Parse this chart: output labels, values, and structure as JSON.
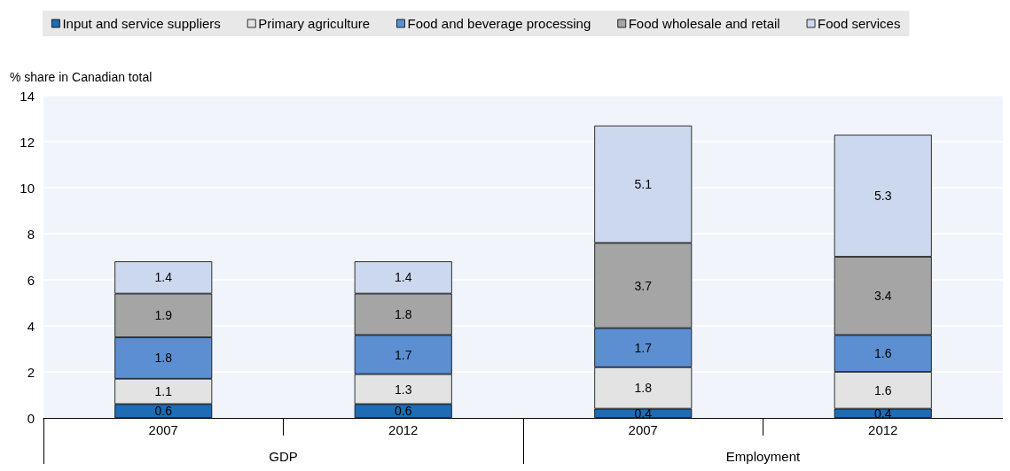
{
  "chart_data": {
    "type": "bar",
    "stacked": true,
    "ylabel": "% share in Canadian total",
    "categories": [
      "2007",
      "2012",
      "2007",
      "2012"
    ],
    "annotations": [
      "GDP",
      "Employment"
    ],
    "series": [
      {
        "name": "Input and service suppliers",
        "color": "#1f6cb5",
        "values": [
          0.6,
          0.6,
          0.4,
          0.4
        ]
      },
      {
        "name": "Primary agriculture",
        "color": "#e3e3e3",
        "values": [
          1.1,
          1.3,
          1.8,
          1.6
        ]
      },
      {
        "name": "Food and beverage processing",
        "color": "#5b8fd2",
        "values": [
          1.8,
          1.7,
          1.7,
          1.6
        ]
      },
      {
        "name": "Food wholesale and retail",
        "color": "#a5a5a5",
        "values": [
          1.9,
          1.8,
          3.7,
          3.4
        ]
      },
      {
        "name": "Food services",
        "color": "#ccd8ee",
        "values": [
          1.4,
          1.4,
          5.1,
          5.3
        ]
      }
    ],
    "ylim": [
      0,
      14
    ],
    "yticks": [
      0,
      2,
      4,
      6,
      8,
      10,
      12,
      14
    ],
    "grid": "y",
    "legend": "top",
    "data_labels": true
  }
}
